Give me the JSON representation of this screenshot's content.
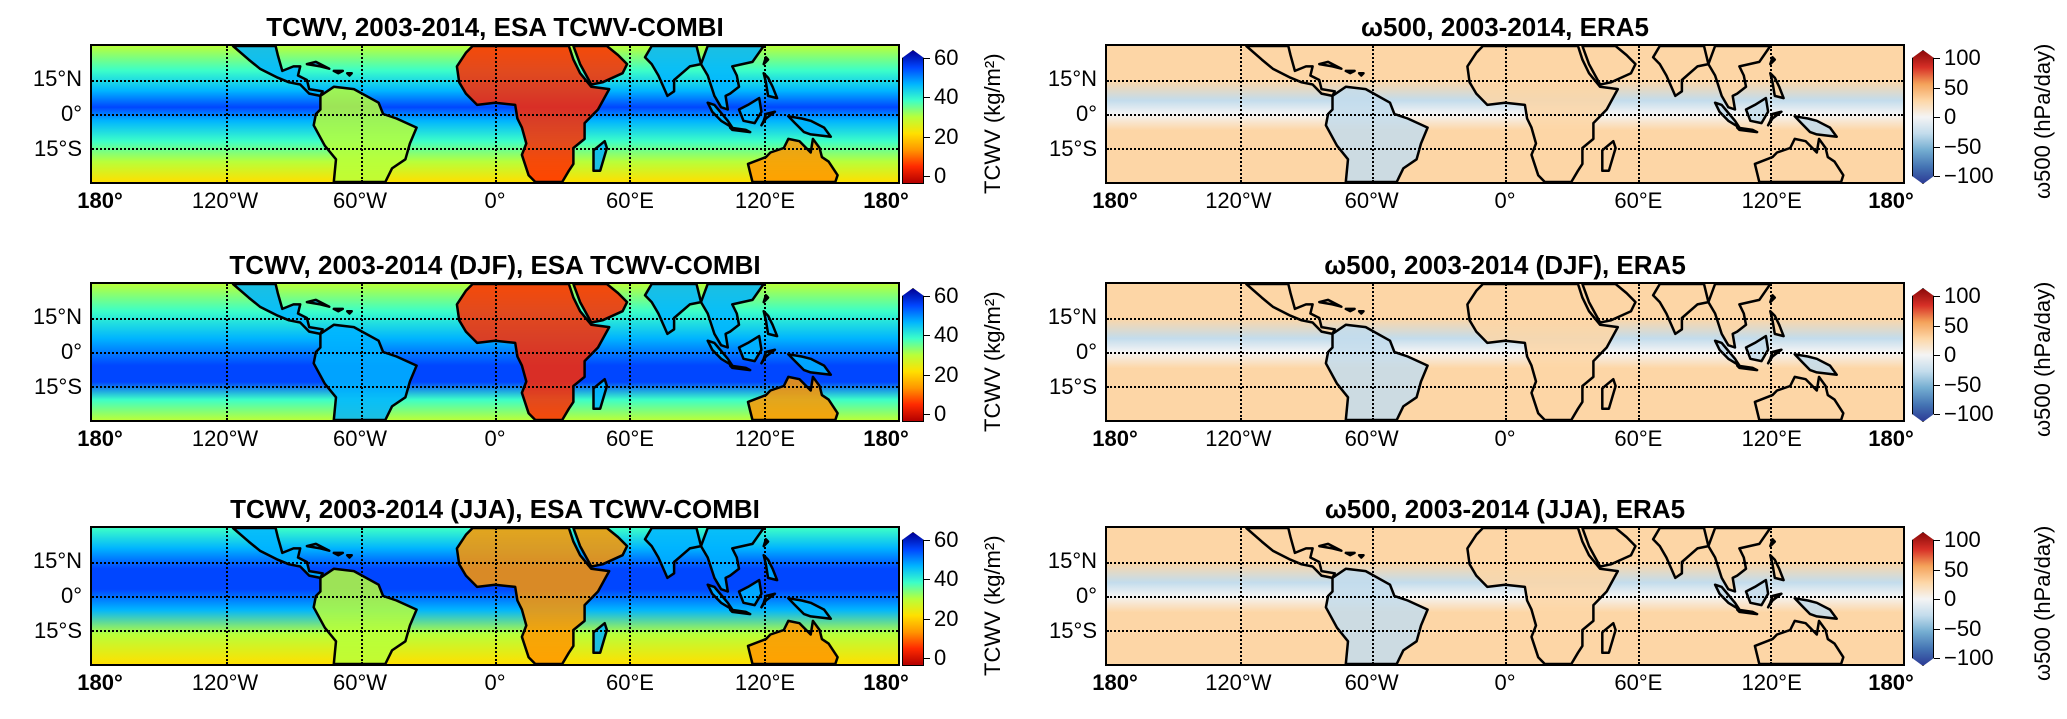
{
  "colors": {
    "tcwv_scale": [
      "#b40000",
      "#ff2a00",
      "#ff9600",
      "#ffe000",
      "#b8ff3a",
      "#3cffc8",
      "#00b4ff",
      "#0046ff",
      "#000096"
    ],
    "omega_scale": [
      "#2d3c96",
      "#4575b4",
      "#74add1",
      "#c3dcec",
      "#f4f4f4",
      "#fdd6a6",
      "#f4a25a",
      "#d73027",
      "#8c0a0a"
    ],
    "land_outline": "#000000"
  },
  "lat_ticks": [
    "15°N",
    "0°",
    "15°S"
  ],
  "lon_ticks": [
    "180°",
    "120°W",
    "60°W",
    "0°",
    "60°E",
    "120°E",
    "180°"
  ],
  "panels": [
    {
      "title": "TCWV, 2003-2014, ESA TCWV-COMBI",
      "cbar_ticks": [
        "60",
        "40",
        "20",
        "0"
      ],
      "cbar_label": "TCWV (kg/m²)"
    },
    {
      "title": "ω500, 2003-2014, ERA5",
      "cbar_ticks": [
        "100",
        "50",
        "0",
        "−50",
        "−100"
      ],
      "cbar_label": "ω500 (hPa/day)"
    },
    {
      "title": "TCWV, 2003-2014 (DJF), ESA TCWV-COMBI",
      "cbar_ticks": [
        "60",
        "40",
        "20",
        "0"
      ],
      "cbar_label": "TCWV (kg/m²)"
    },
    {
      "title": "ω500, 2003-2014 (DJF), ERA5",
      "cbar_ticks": [
        "100",
        "50",
        "0",
        "−50",
        "−100"
      ],
      "cbar_label": "ω500 (hPa/day)"
    },
    {
      "title": "TCWV, 2003-2014 (JJA), ESA TCWV-COMBI",
      "cbar_ticks": [
        "60",
        "40",
        "20",
        "0"
      ],
      "cbar_label": "TCWV (kg/m²)"
    },
    {
      "title": "ω500, 2003-2014 (JJA), ERA5",
      "cbar_ticks": [
        "100",
        "50",
        "0",
        "−50",
        "−100"
      ],
      "cbar_label": "ω500 (hPa/day)"
    }
  ]
}
